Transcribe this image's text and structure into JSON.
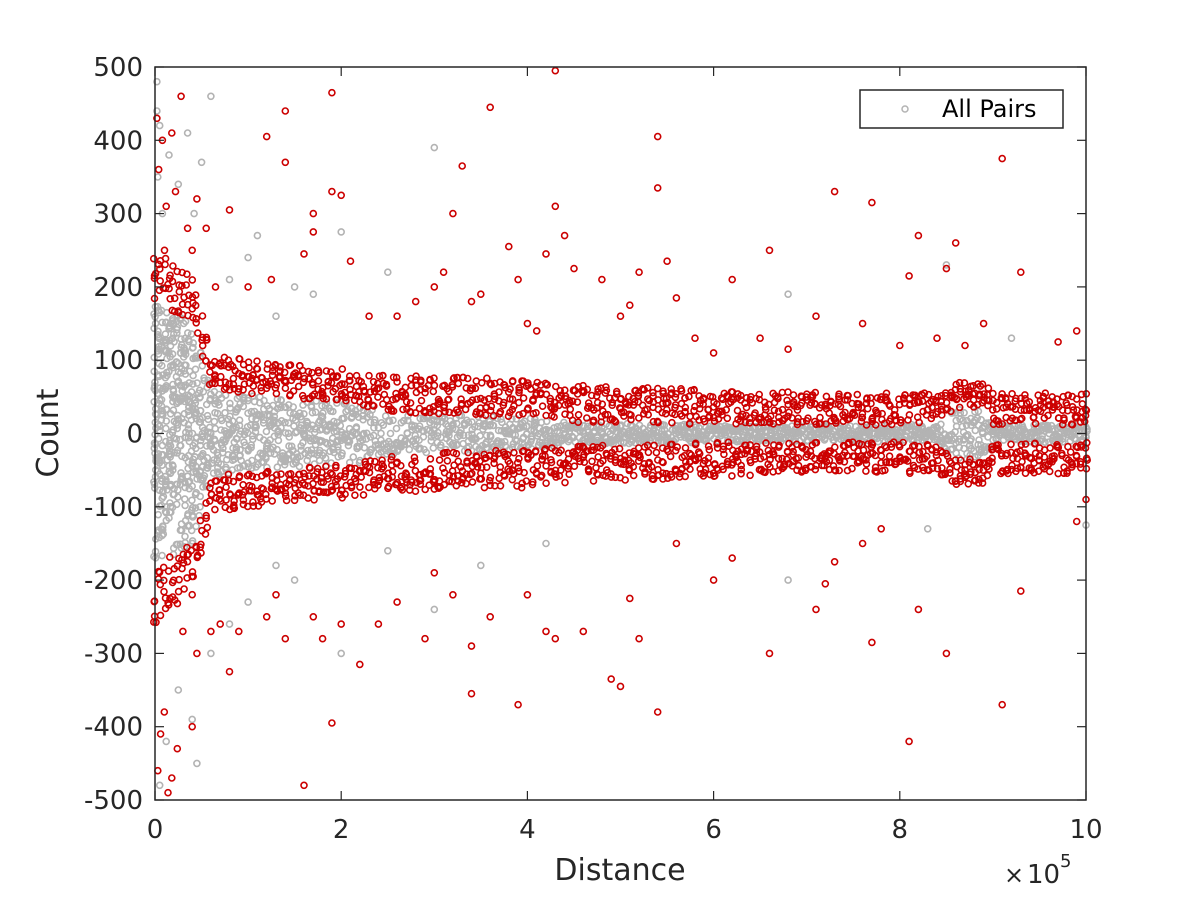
{
  "chart_data": {
    "type": "scatter",
    "xlabel": "Distance",
    "ylabel": "Count",
    "x_exponent_base": "10",
    "x_exponent_power": "5",
    "xlim": [
      0,
      1000000
    ],
    "ylim": [
      -500,
      500
    ],
    "x_ticks": [
      0,
      200000,
      400000,
      600000,
      800000,
      1000000
    ],
    "x_tick_labels": [
      "0",
      "2",
      "4",
      "6",
      "8",
      "10"
    ],
    "y_ticks": [
      -500,
      -400,
      -300,
      -200,
      -100,
      0,
      100,
      200,
      300,
      400,
      500
    ],
    "y_tick_labels": [
      "-500",
      "-400",
      "-300",
      "-200",
      "-100",
      "0",
      "100",
      "200",
      "300",
      "400",
      "500"
    ],
    "grid": false,
    "legend": {
      "entries": [
        "All Pairs"
      ],
      "placement": "top-right"
    },
    "colors": {
      "all_pairs": "#b3b3b3",
      "highlighted": "#cc0000"
    },
    "series": [
      {
        "name": "All Pairs",
        "marker": "open-circle",
        "color": "#b3b3b3",
        "bands": [
          {
            "x": 0,
            "half_width": 175
          },
          {
            "x": 10000,
            "half_width": 170
          },
          {
            "x": 20000,
            "half_width": 165
          },
          {
            "x": 30000,
            "half_width": 160
          },
          {
            "x": 40000,
            "half_width": 150
          },
          {
            "x": 60000,
            "half_width": 60
          },
          {
            "x": 80000,
            "half_width": 55
          },
          {
            "x": 100000,
            "half_width": 52
          },
          {
            "x": 120000,
            "half_width": 50
          },
          {
            "x": 140000,
            "half_width": 48
          },
          {
            "x": 160000,
            "half_width": 45
          },
          {
            "x": 180000,
            "half_width": 45
          },
          {
            "x": 200000,
            "half_width": 42
          },
          {
            "x": 220000,
            "half_width": 40
          },
          {
            "x": 240000,
            "half_width": 30
          },
          {
            "x": 260000,
            "half_width": 28
          },
          {
            "x": 300000,
            "half_width": 26
          },
          {
            "x": 350000,
            "half_width": 24
          },
          {
            "x": 400000,
            "half_width": 22
          },
          {
            "x": 450000,
            "half_width": 15
          },
          {
            "x": 500000,
            "half_width": 14
          },
          {
            "x": 550000,
            "half_width": 13
          },
          {
            "x": 600000,
            "half_width": 12
          },
          {
            "x": 650000,
            "half_width": 12
          },
          {
            "x": 700000,
            "half_width": 11
          },
          {
            "x": 750000,
            "half_width": 11
          },
          {
            "x": 800000,
            "half_width": 12
          },
          {
            "x": 840000,
            "half_width": 12
          },
          {
            "x": 860000,
            "half_width": 35
          },
          {
            "x": 890000,
            "half_width": 35
          },
          {
            "x": 900000,
            "half_width": 12
          },
          {
            "x": 950000,
            "half_width": 12
          },
          {
            "x": 1000000,
            "half_width": 12
          }
        ],
        "outliers": [
          [
            2000,
            480
          ],
          [
            5000,
            420
          ],
          [
            3000,
            350
          ],
          [
            8000,
            300
          ],
          [
            15000,
            380
          ],
          [
            25000,
            340
          ],
          [
            35000,
            410
          ],
          [
            42000,
            300
          ],
          [
            50000,
            370
          ],
          [
            60000,
            460
          ],
          [
            80000,
            210
          ],
          [
            100000,
            240
          ],
          [
            110000,
            270
          ],
          [
            130000,
            160
          ],
          [
            150000,
            200
          ],
          [
            170000,
            190
          ],
          [
            200000,
            275
          ],
          [
            300000,
            390
          ],
          [
            250000,
            220
          ],
          [
            680000,
            190
          ],
          [
            850000,
            230
          ],
          [
            920000,
            130
          ],
          [
            5000,
            -480
          ],
          [
            12000,
            -420
          ],
          [
            25000,
            -350
          ],
          [
            40000,
            -390
          ],
          [
            45000,
            -450
          ],
          [
            60000,
            -300
          ],
          [
            80000,
            -260
          ],
          [
            100000,
            -230
          ],
          [
            130000,
            -180
          ],
          [
            150000,
            -200
          ],
          [
            200000,
            -300
          ],
          [
            250000,
            -160
          ],
          [
            300000,
            -240
          ],
          [
            350000,
            -180
          ],
          [
            420000,
            -150
          ],
          [
            680000,
            -200
          ],
          [
            830000,
            -130
          ],
          [
            1000000,
            -125
          ],
          [
            2000,
            440
          ]
        ]
      },
      {
        "name": "",
        "marker": "open-circle",
        "color": "#cc0000",
        "bands": [
          {
            "x": 0,
            "inner": 175,
            "outer": 260
          },
          {
            "x": 10000,
            "inner": 170,
            "outer": 250
          },
          {
            "x": 20000,
            "inner": 165,
            "outer": 240
          },
          {
            "x": 30000,
            "inner": 160,
            "outer": 230
          },
          {
            "x": 40000,
            "inner": 150,
            "outer": 220
          },
          {
            "x": 60000,
            "inner": 60,
            "outer": 110
          },
          {
            "x": 80000,
            "inner": 55,
            "outer": 105
          },
          {
            "x": 100000,
            "inner": 52,
            "outer": 100
          },
          {
            "x": 120000,
            "inner": 50,
            "outer": 98
          },
          {
            "x": 140000,
            "inner": 48,
            "outer": 96
          },
          {
            "x": 160000,
            "inner": 45,
            "outer": 92
          },
          {
            "x": 180000,
            "inner": 45,
            "outer": 90
          },
          {
            "x": 200000,
            "inner": 42,
            "outer": 88
          },
          {
            "x": 220000,
            "inner": 40,
            "outer": 85
          },
          {
            "x": 240000,
            "inner": 30,
            "outer": 82
          },
          {
            "x": 260000,
            "inner": 28,
            "outer": 80
          },
          {
            "x": 300000,
            "inner": 26,
            "outer": 78
          },
          {
            "x": 350000,
            "inner": 24,
            "outer": 76
          },
          {
            "x": 400000,
            "inner": 22,
            "outer": 74
          },
          {
            "x": 450000,
            "inner": 15,
            "outer": 66
          },
          {
            "x": 500000,
            "inner": 14,
            "outer": 64
          },
          {
            "x": 550000,
            "inner": 13,
            "outer": 62
          },
          {
            "x": 600000,
            "inner": 12,
            "outer": 60
          },
          {
            "x": 650000,
            "inner": 12,
            "outer": 58
          },
          {
            "x": 700000,
            "inner": 11,
            "outer": 56
          },
          {
            "x": 750000,
            "inner": 11,
            "outer": 55
          },
          {
            "x": 800000,
            "inner": 12,
            "outer": 55
          },
          {
            "x": 840000,
            "inner": 12,
            "outer": 55
          },
          {
            "x": 860000,
            "inner": 35,
            "outer": 70
          },
          {
            "x": 890000,
            "inner": 35,
            "outer": 70
          },
          {
            "x": 900000,
            "inner": 12,
            "outer": 55
          },
          {
            "x": 950000,
            "inner": 12,
            "outer": 55
          },
          {
            "x": 1000000,
            "inner": 12,
            "outer": 55
          }
        ],
        "outliers": [
          [
            2000,
            430
          ],
          [
            4000,
            360
          ],
          [
            8000,
            400
          ],
          [
            12000,
            310
          ],
          [
            18000,
            410
          ],
          [
            22000,
            330
          ],
          [
            28000,
            460
          ],
          [
            35000,
            280
          ],
          [
            40000,
            250
          ],
          [
            45000,
            320
          ],
          [
            55000,
            280
          ],
          [
            65000,
            200
          ],
          [
            80000,
            305
          ],
          [
            100000,
            200
          ],
          [
            120000,
            405
          ],
          [
            125000,
            210
          ],
          [
            140000,
            440
          ],
          [
            140000,
            370
          ],
          [
            160000,
            245
          ],
          [
            170000,
            300
          ],
          [
            170000,
            275
          ],
          [
            190000,
            465
          ],
          [
            190000,
            330
          ],
          [
            200000,
            325
          ],
          [
            210000,
            235
          ],
          [
            230000,
            160
          ],
          [
            260000,
            160
          ],
          [
            280000,
            180
          ],
          [
            300000,
            200
          ],
          [
            310000,
            220
          ],
          [
            320000,
            300
          ],
          [
            330000,
            365
          ],
          [
            340000,
            180
          ],
          [
            350000,
            190
          ],
          [
            360000,
            445
          ],
          [
            380000,
            255
          ],
          [
            390000,
            210
          ],
          [
            400000,
            150
          ],
          [
            410000,
            140
          ],
          [
            420000,
            245
          ],
          [
            430000,
            495
          ],
          [
            430000,
            310
          ],
          [
            440000,
            270
          ],
          [
            450000,
            225
          ],
          [
            480000,
            210
          ],
          [
            500000,
            160
          ],
          [
            510000,
            175
          ],
          [
            520000,
            220
          ],
          [
            540000,
            405
          ],
          [
            540000,
            335
          ],
          [
            550000,
            235
          ],
          [
            560000,
            185
          ],
          [
            580000,
            130
          ],
          [
            600000,
            110
          ],
          [
            620000,
            210
          ],
          [
            650000,
            130
          ],
          [
            660000,
            250
          ],
          [
            680000,
            115
          ],
          [
            710000,
            160
          ],
          [
            730000,
            330
          ],
          [
            760000,
            150
          ],
          [
            770000,
            315
          ],
          [
            800000,
            120
          ],
          [
            810000,
            215
          ],
          [
            820000,
            270
          ],
          [
            840000,
            130
          ],
          [
            850000,
            225
          ],
          [
            860000,
            260
          ],
          [
            870000,
            120
          ],
          [
            890000,
            150
          ],
          [
            910000,
            375
          ],
          [
            930000,
            220
          ],
          [
            970000,
            125
          ],
          [
            990000,
            140
          ],
          [
            3000,
            -460
          ],
          [
            6000,
            -410
          ],
          [
            10000,
            -380
          ],
          [
            14000,
            -490
          ],
          [
            18000,
            -470
          ],
          [
            24000,
            -430
          ],
          [
            30000,
            -270
          ],
          [
            40000,
            -400
          ],
          [
            45000,
            -300
          ],
          [
            60000,
            -270
          ],
          [
            70000,
            -260
          ],
          [
            80000,
            -325
          ],
          [
            90000,
            -270
          ],
          [
            120000,
            -250
          ],
          [
            130000,
            -220
          ],
          [
            140000,
            -280
          ],
          [
            160000,
            -480
          ],
          [
            170000,
            -250
          ],
          [
            180000,
            -280
          ],
          [
            190000,
            -395
          ],
          [
            200000,
            -260
          ],
          [
            220000,
            -315
          ],
          [
            240000,
            -260
          ],
          [
            260000,
            -230
          ],
          [
            290000,
            -280
          ],
          [
            300000,
            -190
          ],
          [
            320000,
            -220
          ],
          [
            340000,
            -355
          ],
          [
            340000,
            -290
          ],
          [
            360000,
            -250
          ],
          [
            390000,
            -370
          ],
          [
            400000,
            -220
          ],
          [
            420000,
            -270
          ],
          [
            430000,
            -280
          ],
          [
            460000,
            -270
          ],
          [
            490000,
            -335
          ],
          [
            500000,
            -345
          ],
          [
            510000,
            -225
          ],
          [
            520000,
            -280
          ],
          [
            540000,
            -380
          ],
          [
            560000,
            -150
          ],
          [
            600000,
            -200
          ],
          [
            620000,
            -170
          ],
          [
            660000,
            -300
          ],
          [
            710000,
            -240
          ],
          [
            720000,
            -205
          ],
          [
            730000,
            -175
          ],
          [
            760000,
            -150
          ],
          [
            770000,
            -285
          ],
          [
            780000,
            -130
          ],
          [
            810000,
            -420
          ],
          [
            820000,
            -240
          ],
          [
            850000,
            -300
          ],
          [
            910000,
            -370
          ],
          [
            930000,
            -215
          ],
          [
            990000,
            -120
          ],
          [
            1000000,
            -90
          ]
        ]
      }
    ]
  }
}
